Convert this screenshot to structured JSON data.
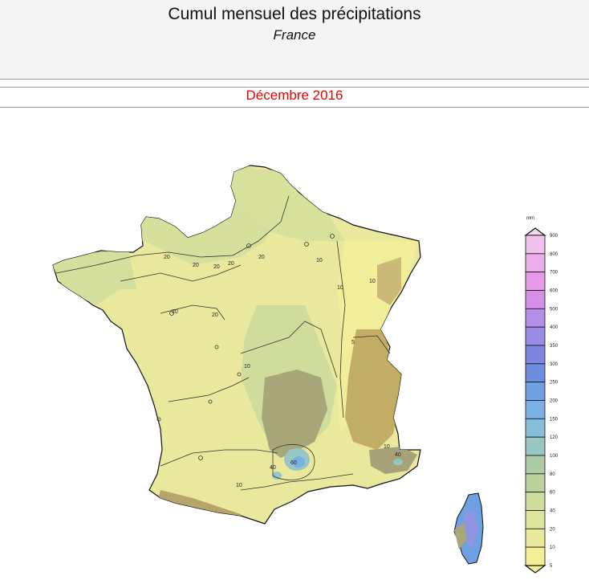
{
  "header": {
    "title": "Cumul mensuel des précipitations",
    "subtitle": "France"
  },
  "period": "Décembre 2016",
  "legend": {
    "unit": "mm",
    "classes": [
      {
        "value": "900",
        "color": "#f3d6ee"
      },
      {
        "value": "800",
        "color": "#efc2ec"
      },
      {
        "value": "700",
        "color": "#ebaee9"
      },
      {
        "value": "600",
        "color": "#e59be8"
      },
      {
        "value": "500",
        "color": "#d68fe7"
      },
      {
        "value": "400",
        "color": "#b58ee8"
      },
      {
        "value": "350",
        "color": "#9a8ce6"
      },
      {
        "value": "300",
        "color": "#7f86e0"
      },
      {
        "value": "250",
        "color": "#6e8fe0"
      },
      {
        "value": "200",
        "color": "#6fa0e4"
      },
      {
        "value": "150",
        "color": "#79b1e2"
      },
      {
        "value": "120",
        "color": "#86bfd9"
      },
      {
        "value": "100",
        "color": "#98c6c4"
      },
      {
        "value": "80",
        "color": "#abcca6"
      },
      {
        "value": "60",
        "color": "#bcd39d"
      },
      {
        "value": "40",
        "color": "#cedd9c"
      },
      {
        "value": "20",
        "color": "#dde59d"
      },
      {
        "value": "10",
        "color": "#eae89c"
      },
      {
        "value": "5",
        "color": "#f5ef98"
      }
    ]
  },
  "contour_labels": {
    "c20_nw": "20",
    "c20_brittany": "20",
    "c20_paris": "20",
    "c20_w1": "20",
    "c20_w2": "20",
    "c20_normandy": "20",
    "c20_center": "20",
    "c10_ne": "10",
    "c10_e": "10",
    "c10_alsace": "10",
    "c5_alps": "5",
    "c10_center": "10",
    "c10_sw": "10",
    "c10_se": "10",
    "c40_cevennes": "40",
    "c60_cevennes": "60",
    "c40_var": "40"
  },
  "colors": {
    "title": "#111111",
    "period": "#e60000",
    "low": "#f5ef98",
    "mid": "#dde59d",
    "dry_relief": "#c2ad64",
    "wet": "#6fa0e4"
  }
}
